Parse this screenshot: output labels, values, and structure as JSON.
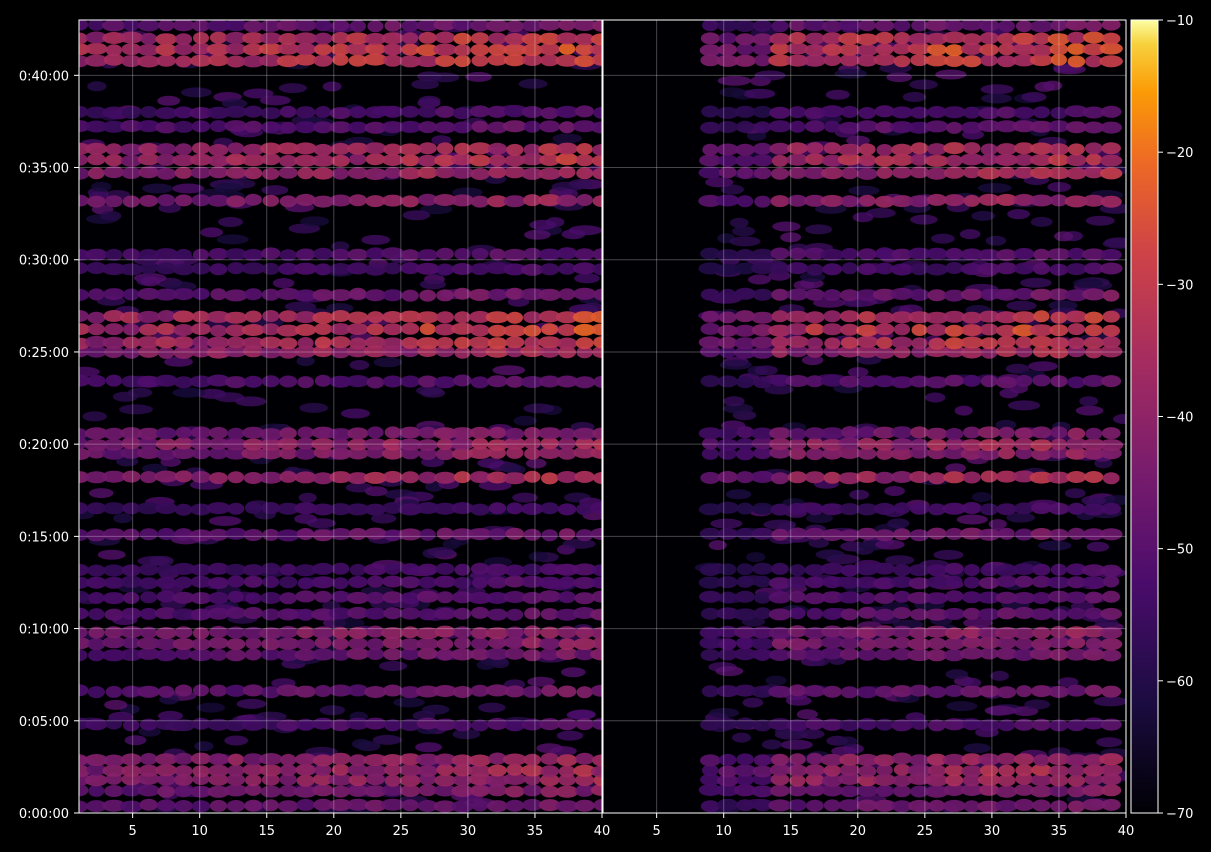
{
  "chart_data": {
    "type": "heatmap",
    "title": "",
    "xlabel": "",
    "ylabel": "",
    "colormap": "inferno",
    "colorbar": {
      "range": [
        -70,
        -10
      ],
      "ticks": [
        "−10",
        "−20",
        "−30",
        "−40",
        "−50",
        "−60",
        "−70"
      ]
    },
    "y_axis": {
      "range_minutes": [
        0,
        43
      ],
      "ticks": [
        {
          "label": "0:00:00",
          "minutes": 0
        },
        {
          "label": "0:05:00",
          "minutes": 5
        },
        {
          "label": "0:10:00",
          "minutes": 10
        },
        {
          "label": "0:15:00",
          "minutes": 15
        },
        {
          "label": "0:20:00",
          "minutes": 20
        },
        {
          "label": "0:25:00",
          "minutes": 25
        },
        {
          "label": "0:30:00",
          "minutes": 30
        },
        {
          "label": "0:35:00",
          "minutes": 35
        },
        {
          "label": "0:40:00",
          "minutes": 40
        }
      ]
    },
    "panels": [
      {
        "x_range": [
          1,
          40
        ],
        "x_ticks": [
          "5",
          "10",
          "15",
          "20",
          "25",
          "30",
          "35",
          "40"
        ],
        "x_tick_values": [
          5,
          10,
          15,
          20,
          25,
          30,
          35,
          40
        ],
        "activity_start": 1
      },
      {
        "x_range": [
          1,
          40
        ],
        "x_ticks": [
          "5",
          "10",
          "15",
          "20",
          "25",
          "30",
          "35",
          "40"
        ],
        "x_tick_values": [
          5,
          10,
          15,
          20,
          25,
          30,
          35,
          40
        ],
        "activity_start": 9
      }
    ],
    "bands": [
      {
        "minutes": 0.4,
        "intensity": 0.45
      },
      {
        "minutes": 1.2,
        "intensity": 0.5
      },
      {
        "minutes": 1.8,
        "intensity": 0.6
      },
      {
        "minutes": 2.3,
        "intensity": 0.62
      },
      {
        "minutes": 2.9,
        "intensity": 0.6
      },
      {
        "minutes": 4.8,
        "intensity": 0.35
      },
      {
        "minutes": 6.6,
        "intensity": 0.45
      },
      {
        "minutes": 8.6,
        "intensity": 0.45
      },
      {
        "minutes": 9.2,
        "intensity": 0.52
      },
      {
        "minutes": 9.8,
        "intensity": 0.55
      },
      {
        "minutes": 10.8,
        "intensity": 0.4
      },
      {
        "minutes": 11.7,
        "intensity": 0.38
      },
      {
        "minutes": 12.5,
        "intensity": 0.36
      },
      {
        "minutes": 13.2,
        "intensity": 0.32
      },
      {
        "minutes": 15.1,
        "intensity": 0.45
      },
      {
        "minutes": 16.5,
        "intensity": 0.3
      },
      {
        "minutes": 18.2,
        "intensity": 0.65
      },
      {
        "minutes": 19.5,
        "intensity": 0.55
      },
      {
        "minutes": 20.0,
        "intensity": 0.6
      },
      {
        "minutes": 20.6,
        "intensity": 0.5
      },
      {
        "minutes": 23.4,
        "intensity": 0.38
      },
      {
        "minutes": 25.0,
        "intensity": 0.62
      },
      {
        "minutes": 25.5,
        "intensity": 0.72
      },
      {
        "minutes": 26.2,
        "intensity": 0.75
      },
      {
        "minutes": 26.9,
        "intensity": 0.72
      },
      {
        "minutes": 28.1,
        "intensity": 0.45
      },
      {
        "minutes": 29.5,
        "intensity": 0.32
      },
      {
        "minutes": 30.3,
        "intensity": 0.38
      },
      {
        "minutes": 33.2,
        "intensity": 0.58
      },
      {
        "minutes": 34.7,
        "intensity": 0.62
      },
      {
        "minutes": 35.4,
        "intensity": 0.68
      },
      {
        "minutes": 36.0,
        "intensity": 0.65
      },
      {
        "minutes": 37.2,
        "intensity": 0.4
      },
      {
        "minutes": 38.0,
        "intensity": 0.35
      },
      {
        "minutes": 40.8,
        "intensity": 0.75
      },
      {
        "minutes": 41.4,
        "intensity": 0.8
      },
      {
        "minutes": 42.0,
        "intensity": 0.72
      },
      {
        "minutes": 42.7,
        "intensity": 0.45
      }
    ]
  }
}
